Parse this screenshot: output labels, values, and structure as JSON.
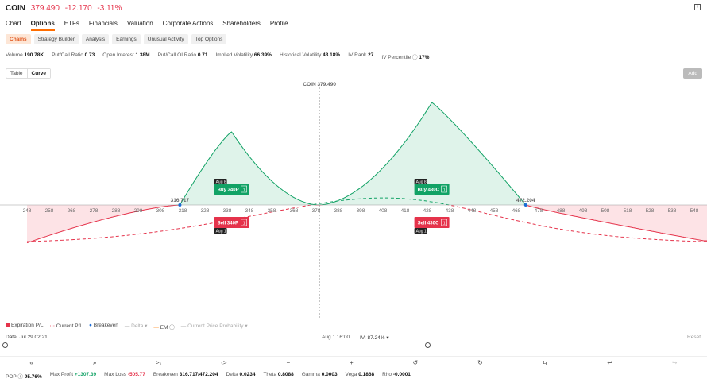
{
  "header": {
    "symbol": "COIN",
    "price": "379.490",
    "change": "-12.170",
    "change_pct": "-3.11%"
  },
  "tabs": [
    "Chart",
    "Options",
    "ETFs",
    "Financials",
    "Valuation",
    "Corporate Actions",
    "Shareholders",
    "Profile"
  ],
  "subtabs": [
    "Chains",
    "Strategy Builder",
    "Analysis",
    "Earnings",
    "Unusual Activity",
    "Top Options"
  ],
  "stats": [
    {
      "label": "Volume",
      "value": "190.78K"
    },
    {
      "label": "Put/Call Ratio",
      "value": "0.73"
    },
    {
      "label": "Open Interest",
      "value": "1.38M"
    },
    {
      "label": "Put/Call OI Ratio",
      "value": "0.71"
    },
    {
      "label": "Implied Volatility",
      "value": "66.39%"
    },
    {
      "label": "Historical Volatility",
      "value": "43.18%"
    },
    {
      "label": "IV Rank",
      "value": "27"
    },
    {
      "label": "IV Percentile ⓘ",
      "value": "17%"
    }
  ],
  "view_toggle": [
    "Table",
    "Curve"
  ],
  "add_label": "Add",
  "chart": {
    "current_label": "COIN 379.490",
    "breakeven_left": "316.717",
    "breakeven_right": "472.204",
    "ticks": [
      "248",
      "258",
      "268",
      "278",
      "288",
      "298",
      "308",
      "318",
      "328",
      "338",
      "348",
      "358",
      "368",
      "378",
      "388",
      "398",
      "408",
      "418",
      "428",
      "438",
      "448",
      "458",
      "468",
      "478",
      "488",
      "498",
      "508",
      "518",
      "528",
      "538",
      "548"
    ],
    "legs": [
      {
        "date": "Aug 8",
        "label": "Buy 340P",
        "qty": "1"
      },
      {
        "date": "Aug 1",
        "label": "Sell 340P",
        "qty": "1"
      },
      {
        "date": "Aug 8",
        "label": "Buy 430C",
        "qty": "1"
      },
      {
        "date": "Aug 1",
        "label": "Sell 430C",
        "qty": "1"
      }
    ],
    "colors": {
      "profit": "#11a265",
      "loss": "#e5334b"
    }
  },
  "legend": {
    "expiration": "Expiration P/L",
    "current": "Current P/L",
    "breakeven": "Breakeven",
    "delta": "Delta ▾",
    "em": "EM ⓘ",
    "prob": "Current Price Probability ▾"
  },
  "date_label": "Date:  Jul 29 02:21",
  "end_date": "Aug 1 16:00",
  "iv_label": "IV:  87.24% ▾",
  "reset": "Reset",
  "controls": [
    "«",
    "»",
    ">‹",
    "‹>",
    "−",
    "+",
    "↺",
    "↻",
    "⇆",
    "↩",
    "↪"
  ],
  "footer": [
    {
      "label": "POP ⓘ",
      "value": "95.76%",
      "cls": ""
    },
    {
      "label": "Max Profit",
      "value": "+1307.39",
      "cls": "green"
    },
    {
      "label": "Max Loss",
      "value": "-505.77",
      "cls": "red"
    },
    {
      "label": "Breakeven",
      "value": "316.717/472.204",
      "cls": ""
    },
    {
      "label": "Delta",
      "value": "0.0234",
      "cls": ""
    },
    {
      "label": "Theta",
      "value": "0.8088",
      "cls": ""
    },
    {
      "label": "Gamma",
      "value": "0.0003",
      "cls": ""
    },
    {
      "label": "Vega",
      "value": "0.1868",
      "cls": ""
    },
    {
      "label": "Rho",
      "value": "-0.0001",
      "cls": ""
    }
  ]
}
